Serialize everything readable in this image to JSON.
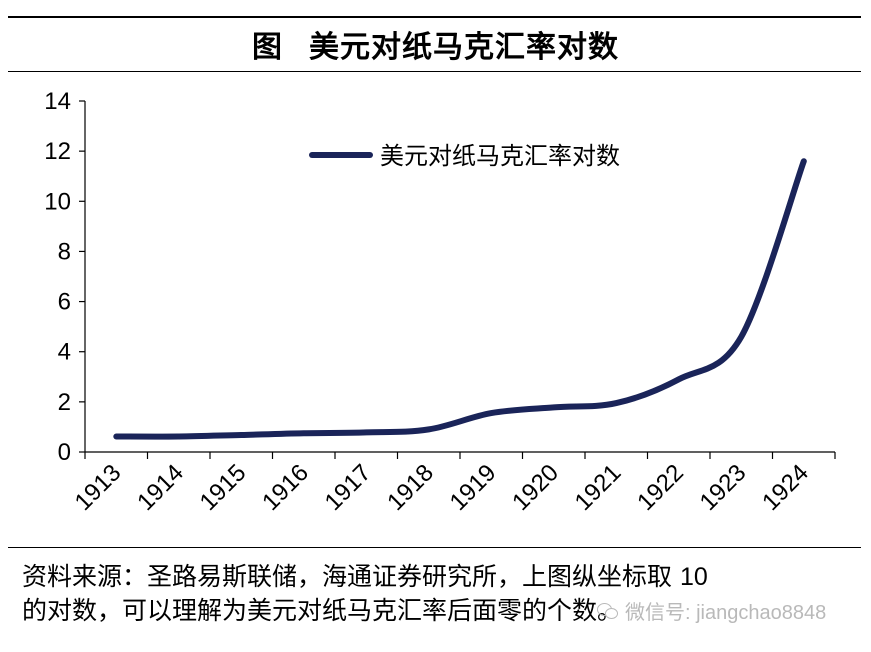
{
  "header": {
    "figure_prefix": "图",
    "title": "美元对纸马克汇率对数"
  },
  "chart_data": {
    "type": "line",
    "title": "美元对纸马克汇率对数",
    "xlabel": "",
    "ylabel": "",
    "categories": [
      "1913",
      "1914",
      "1915",
      "1916",
      "1917",
      "1918",
      "1919",
      "1920",
      "1921",
      "1922",
      "1923",
      "1924"
    ],
    "ylim": [
      0,
      14
    ],
    "yticks": [
      0,
      2,
      4,
      6,
      8,
      10,
      12,
      14
    ],
    "grid": false,
    "legend": "top-right",
    "series": [
      {
        "name": "美元对纸马克汇率对数",
        "color": "#1a2459",
        "values": [
          0.62,
          0.62,
          0.68,
          0.75,
          0.78,
          0.9,
          1.55,
          1.78,
          1.95,
          2.9,
          4.6,
          11.6
        ]
      }
    ]
  },
  "footer": {
    "source_text": "资料来源：圣路易斯联储，海通证券研究所，上图纵坐标取",
    "source_number": "10",
    "source_text_2": "的对数，可以理解为美元对纸马克汇率后面零的个数。"
  },
  "watermark": {
    "icon": "wechat-icon",
    "text": "微信号: jiangchao8848"
  }
}
